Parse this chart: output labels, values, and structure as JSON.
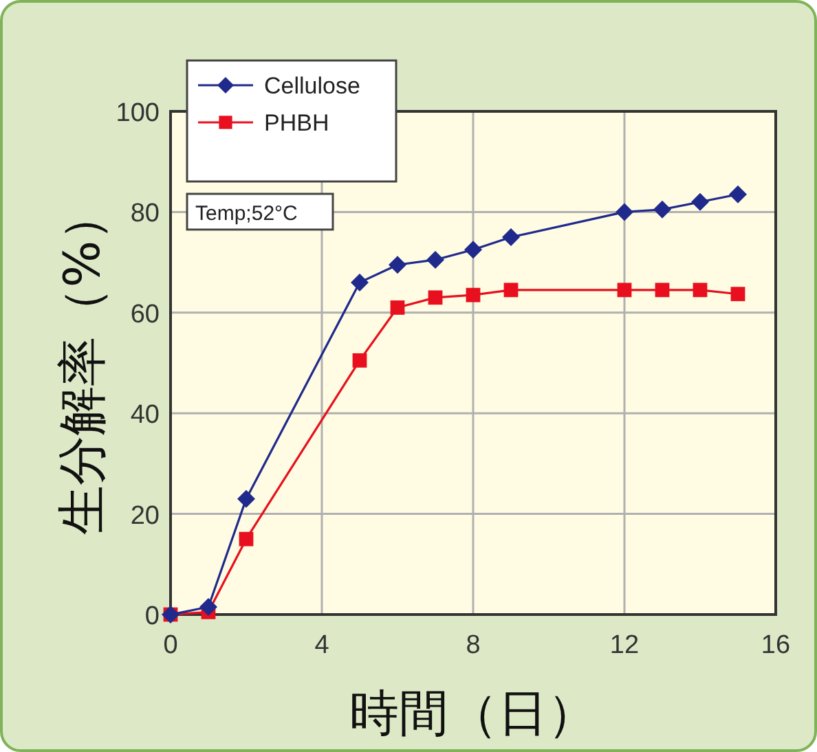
{
  "chart_data": {
    "type": "line",
    "xlabel": "時間（日）",
    "ylabel": "生分解率（%）",
    "annotations": [
      "Temp;52°C"
    ],
    "xlim": [
      0,
      16
    ],
    "xticks": [
      0,
      4,
      8,
      12,
      16
    ],
    "ylim": [
      0,
      100
    ],
    "yticks": [
      0,
      20,
      40,
      60,
      80,
      100
    ],
    "grid": true,
    "legend": "top left",
    "line_style": "solid",
    "series": [
      {
        "name": "Cellulose",
        "color": "#1f2a8c",
        "marker": "diamond",
        "x": [
          0,
          1,
          2,
          5,
          6,
          7,
          8,
          9,
          12,
          13,
          14,
          15
        ],
        "values": [
          0,
          1.5,
          23,
          66,
          69.5,
          70.5,
          72.5,
          75,
          80,
          80.5,
          82,
          83.5
        ]
      },
      {
        "name": "PHBH",
        "color": "#e8101e",
        "marker": "square",
        "x": [
          0,
          1,
          2,
          5,
          6,
          7,
          8,
          9,
          12,
          13,
          14,
          15
        ],
        "values": [
          0,
          0.5,
          15,
          50.5,
          61,
          63,
          63.5,
          64.5,
          64.5,
          64.5,
          64.5,
          63.7
        ]
      }
    ]
  }
}
